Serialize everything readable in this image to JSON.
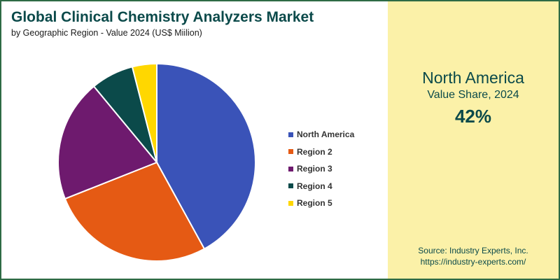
{
  "header": {
    "title": "Global Clinical Chemistry Analyzers Market",
    "subtitle": "by Geographic Region - Value 2024 (US$ Miilion)"
  },
  "highlight": {
    "region": "North America",
    "caption": "Value Share, 2024",
    "value": "42%"
  },
  "source": {
    "line1": "Source: Industry Experts, Inc.",
    "line2": "https://industry-experts.com/"
  },
  "chart_data": {
    "type": "pie",
    "title": "Global Clinical Chemistry Analyzers Market",
    "subtitle": "by Geographic Region - Value 2024 (US$ Miilion)",
    "legend_position": "right",
    "slices": [
      {
        "label": "North America",
        "value": 42,
        "color": "#3a53b8"
      },
      {
        "label": "Region 2",
        "value": 27,
        "color": "#e55a14"
      },
      {
        "label": "Region 3",
        "value": 20,
        "color": "#6e1a6e"
      },
      {
        "label": "Region 4",
        "value": 7,
        "color": "#0b4a4a"
      },
      {
        "label": "Region 5",
        "value": 4,
        "color": "#ffd700"
      }
    ]
  }
}
